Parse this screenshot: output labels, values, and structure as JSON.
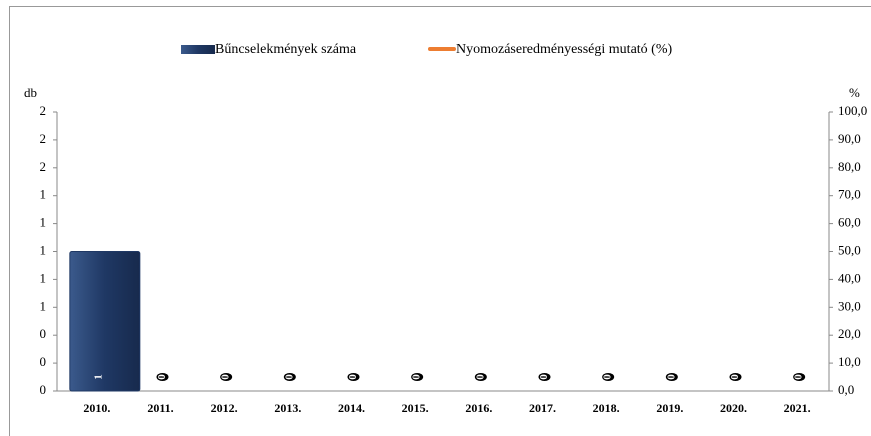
{
  "chart_data": {
    "type": "bar",
    "y_label": "db",
    "y2_label": "%",
    "categories": [
      "2010.",
      "2011.",
      "2012.",
      "2013.",
      "2014.",
      "2015.",
      "2016.",
      "2017.",
      "2018.",
      "2019.",
      "2020.",
      "2021."
    ],
    "series": [
      {
        "name": "Bűncselekmények száma",
        "color": "#1f3864",
        "values": [
          1,
          0,
          0,
          0,
          0,
          0,
          0,
          0,
          0,
          0,
          0,
          0
        ]
      },
      {
        "name": "Nyomozáseredményességi mutató (%)",
        "color": "#ed7d31",
        "axis": "y2",
        "type": "line",
        "values": [
          null,
          null,
          null,
          null,
          null,
          null,
          null,
          null,
          null,
          null,
          null,
          null
        ]
      }
    ],
    "ylim": [
      0,
      2
    ],
    "yticks": [
      0,
      {
        "value": 0.2,
        "label": "0"
      },
      {
        "value": 0.4,
        "label": "0"
      },
      {
        "value": 0.6,
        "label": "1"
      },
      {
        "value": 0.8,
        "label": "1"
      },
      1,
      {
        "value": 1.2,
        "label": "1"
      },
      {
        "value": 1.4,
        "label": "1"
      },
      {
        "value": 1.6,
        "label": "2"
      },
      {
        "value": 1.8,
        "label": "2"
      },
      2
    ],
    "y2lim": [
      0,
      100
    ],
    "y2ticks": [
      {
        "value": 0,
        "label": "0,0"
      },
      {
        "value": 10,
        "label": "10,0"
      },
      {
        "value": 20,
        "label": "20,0"
      },
      {
        "value": 30,
        "label": "30,0"
      },
      {
        "value": 40,
        "label": "40,0"
      },
      {
        "value": 50,
        "label": "50,0"
      },
      {
        "value": 60,
        "label": "60,0"
      },
      {
        "value": 70,
        "label": "70,0"
      },
      {
        "value": 80,
        "label": "80,0"
      },
      {
        "value": 90,
        "label": "90,0"
      },
      {
        "value": 100,
        "label": "100,0"
      }
    ],
    "legend": "top"
  }
}
